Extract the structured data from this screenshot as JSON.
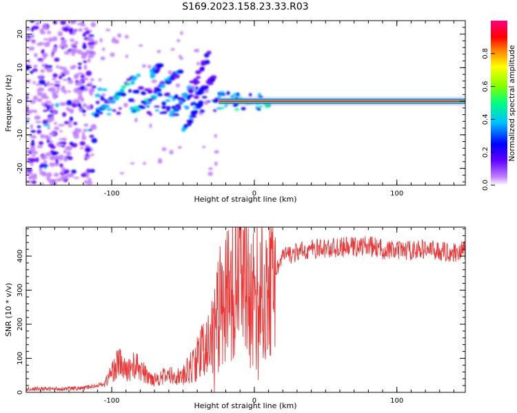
{
  "title": "S169.2023.158.23.33.R03",
  "chart_data": [
    {
      "type": "heatmap",
      "xlabel": "Height of straight line (km)",
      "ylabel": "Frequency (Hz)",
      "xlim": [
        -160,
        148
      ],
      "ylim": [
        -25,
        24
      ],
      "xticks": [
        -100,
        0,
        100
      ],
      "yticks": [
        -20,
        -10,
        0,
        10,
        20
      ],
      "colorbar": {
        "label": "Normalized spectral amplitude",
        "range": [
          0,
          1
        ],
        "ticks": [
          0.0,
          0.2,
          0.4,
          0.6,
          0.8
        ],
        "colormap": [
          "#ffffff",
          "#c080ff",
          "#6000ff",
          "#0000ff",
          "#00c0ff",
          "#00ff80",
          "#80ff00",
          "#ffff00",
          "#ff8000",
          "#ff0000",
          "#ff0080"
        ]
      },
      "features": [
        {
          "name": "scattered noise",
          "x_range": [
            -160,
            -110
          ],
          "freq_range": [
            -25,
            24
          ],
          "amplitude": 0.15
        },
        {
          "name": "broadband emissions",
          "x_range": [
            -115,
            -25
          ],
          "freq_range": [
            -10,
            18
          ],
          "amplitude": 0.3
        },
        {
          "name": "carrier line",
          "x_range": [
            -25,
            148
          ],
          "freq": 0,
          "amplitude": 0.85
        }
      ]
    },
    {
      "type": "line",
      "xlabel": "Height of straight line (km)",
      "ylabel": "SNR (10 * v/v)",
      "xlim": [
        -160,
        148
      ],
      "ylim": [
        0,
        485
      ],
      "xticks": [
        -100,
        0,
        100
      ],
      "yticks": [
        0,
        100,
        200,
        300,
        400
      ],
      "color": "#ee3333",
      "series": [
        {
          "x": [
            -160,
            -140,
            -120,
            -105,
            -100,
            -95,
            -90,
            -85,
            -80,
            -75,
            -70,
            -60,
            -50,
            -45,
            -40,
            -35,
            -30,
            -27,
            -25,
            -22,
            -20,
            -18,
            -15,
            -12,
            -10,
            -8,
            -5,
            -2,
            0,
            3,
            5,
            8,
            10,
            13,
            15,
            18,
            20,
            30,
            40,
            60,
            80,
            90,
            100,
            120,
            140,
            148
          ],
          "y": [
            10,
            10,
            12,
            25,
            60,
            90,
            60,
            80,
            70,
            45,
            40,
            50,
            45,
            70,
            100,
            130,
            160,
            200,
            250,
            220,
            280,
            260,
            320,
            300,
            350,
            300,
            340,
            280,
            330,
            250,
            310,
            270,
            320,
            330,
            360,
            380,
            400,
            410,
            420,
            425,
            430,
            420,
            415,
            420,
            410,
            420
          ]
        }
      ]
    }
  ]
}
